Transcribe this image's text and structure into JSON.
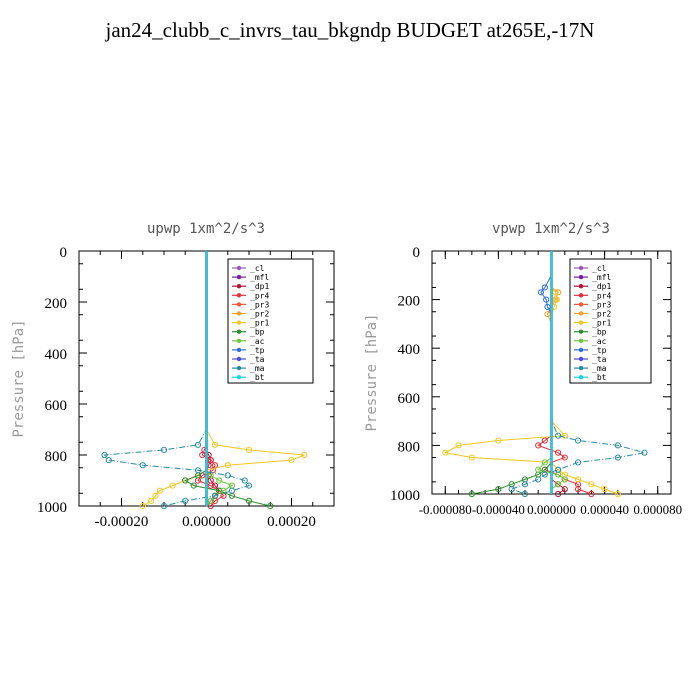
{
  "title": "jan24_clubb_c_invrs_tau_bkgndp  BUDGET at265E,-17N",
  "legend_labels": [
    "_cl",
    "_mfl",
    "_dp1",
    "_pr4",
    "_pr3",
    "_pr2",
    "_pr1",
    "_bp",
    "_ac",
    "_tp",
    "_ta",
    "_ma",
    "_bt"
  ],
  "colors": {
    "_cl": "#9b59b6",
    "_mfl": "#7a1fa2",
    "_dp1": "#b0163a",
    "_pr4": "#e0303a",
    "_pr3": "#f05a3c",
    "_pr2": "#f0a030",
    "_pr1": "#f0c820",
    "_bp": "#2e8b2e",
    "_ac": "#6cc644",
    "_tp": "#2e6fd8",
    "_ta": "#4b4bd8",
    "_ma": "#2a8aa0",
    "_bt": "#20d0e0"
  },
  "chart_data": [
    {
      "type": "line",
      "title": "upwp   1xm^2/s^3",
      "ylabel": "Pressure [hPa]",
      "xlabel": "",
      "ylim": [
        1000,
        0
      ],
      "xlim": [
        -0.0003,
        0.0003
      ],
      "xticks": [
        -0.0002,
        0,
        0.0002
      ],
      "xtick_labels": [
        "-0.00020",
        "0.00000",
        "0.00020"
      ],
      "yticks": [
        0,
        200,
        400,
        600,
        800,
        1000
      ],
      "ytick_labels": [
        "0",
        "200",
        "400",
        "600",
        "800",
        "1000"
      ],
      "y": [
        0,
        100,
        200,
        300,
        400,
        500,
        600,
        700,
        760,
        780,
        800,
        820,
        840,
        860,
        880,
        900,
        920,
        940,
        960,
        980,
        1000
      ],
      "series": [
        {
          "name": "_cl",
          "values": [
            0,
            0,
            0,
            0,
            0,
            0,
            0,
            0,
            0,
            0,
            0,
            0,
            0,
            0,
            0,
            0,
            0,
            0,
            0,
            0,
            0
          ]
        },
        {
          "name": "_mfl",
          "values": [
            0,
            0,
            0,
            0,
            0,
            0,
            0,
            0,
            0,
            0,
            0,
            0,
            0,
            0,
            0,
            0,
            0,
            0,
            0,
            0,
            0
          ]
        },
        {
          "name": "_dp1",
          "values": [
            0,
            0,
            0,
            0,
            0,
            0,
            0,
            0,
            0,
            0,
            5e-06,
            1e-05,
            5e-06,
            0,
            5e-06,
            1e-05,
            2e-05,
            3e-05,
            2e-05,
            1e-05,
            0
          ]
        },
        {
          "name": "_pr4",
          "values": [
            0,
            0,
            0,
            0,
            0,
            0,
            0,
            0,
            0,
            -5e-06,
            -1e-05,
            1e-05,
            2e-05,
            1.5e-05,
            -1e-05,
            -2e-05,
            1e-05,
            3e-05,
            4e-05,
            2e-05,
            1e-05
          ]
        },
        {
          "name": "_pr3",
          "values": [
            0,
            0,
            0,
            0,
            0,
            0,
            0,
            0,
            0,
            0,
            0,
            0,
            0,
            0,
            0,
            0,
            0,
            0,
            0,
            0,
            0
          ]
        },
        {
          "name": "_pr2",
          "values": [
            0,
            0,
            0,
            0,
            0,
            0,
            0,
            0,
            0,
            0,
            0,
            0,
            0,
            0,
            0,
            0,
            0,
            0,
            0,
            0,
            0
          ]
        },
        {
          "name": "_pr1",
          "values": [
            0,
            0,
            0,
            0,
            0,
            0,
            0,
            0,
            2e-05,
            0.0001,
            0.00023,
            0.0002,
            5e-05,
            0,
            -2e-05,
            -5e-05,
            -8e-05,
            -0.00011,
            -0.00012,
            -0.00013,
            -0.00015
          ]
        },
        {
          "name": "_bp",
          "values": [
            0,
            0,
            0,
            0,
            0,
            0,
            0,
            0,
            0,
            0,
            0,
            0,
            0,
            0,
            -2e-05,
            -5e-05,
            -3e-05,
            3e-05,
            6e-05,
            0.0001,
            0.00015
          ]
        },
        {
          "name": "_ac",
          "values": [
            0,
            0,
            0,
            0,
            0,
            0,
            0,
            0,
            0,
            0,
            0,
            0,
            0,
            0,
            1e-05,
            3e-05,
            6e-05,
            4e-05,
            2e-05,
            1e-05,
            0
          ]
        },
        {
          "name": "_tp",
          "values": [
            0,
            0,
            0,
            0,
            0,
            0,
            0,
            0,
            0,
            0,
            0,
            0,
            0,
            0,
            0,
            0,
            0,
            0,
            0,
            0,
            0
          ]
        },
        {
          "name": "_ta",
          "values": [
            0,
            0,
            0,
            0,
            0,
            0,
            0,
            0,
            0,
            0,
            0,
            0,
            0,
            0,
            0,
            0,
            0,
            0,
            0,
            0,
            0
          ]
        },
        {
          "name": "_ma",
          "values": [
            0,
            0,
            0,
            0,
            0,
            0,
            0,
            0,
            -2e-05,
            -0.0001,
            -0.00024,
            -0.00023,
            -0.00015,
            -2e-05,
            5e-05,
            9e-05,
            0.0001,
            6e-05,
            2e-05,
            -5e-05,
            -0.0001
          ]
        },
        {
          "name": "_bt",
          "values": [
            0,
            0,
            0,
            0,
            0,
            0,
            0,
            0,
            0,
            0,
            0,
            0,
            0,
            0,
            0,
            0,
            0,
            0,
            0,
            0,
            0
          ]
        }
      ],
      "legend": "top-right",
      "grid": false
    },
    {
      "type": "line",
      "title": "vpwp   1xm^2/s^3",
      "ylabel": "Pressure [hPa]",
      "xlabel": "",
      "ylim": [
        1000,
        0
      ],
      "xlim": [
        -9e-05,
        9e-05
      ],
      "xticks": [
        -8e-05,
        -4e-05,
        0,
        4e-05,
        8e-05
      ],
      "xtick_labels": [
        "-0.000080",
        "-0.000040",
        "0.000000",
        "0.000040",
        "0.000080"
      ],
      "yticks": [
        0,
        200,
        400,
        600,
        800,
        1000
      ],
      "ytick_labels": [
        "0",
        "200",
        "400",
        "600",
        "800",
        "1000"
      ],
      "y": [
        0,
        100,
        150,
        170,
        200,
        230,
        260,
        300,
        400,
        500,
        600,
        700,
        760,
        780,
        800,
        830,
        850,
        870,
        900,
        920,
        940,
        960,
        980,
        1000
      ],
      "series": [
        {
          "name": "_cl",
          "values": [
            0,
            0,
            0,
            0,
            0,
            0,
            0,
            0,
            0,
            0,
            0,
            0,
            0,
            0,
            0,
            0,
            0,
            0,
            0,
            0,
            0,
            0,
            0,
            0
          ]
        },
        {
          "name": "_mfl",
          "values": [
            0,
            0,
            0,
            0,
            0,
            0,
            0,
            0,
            0,
            0,
            0,
            0,
            0,
            0,
            0,
            0,
            0,
            0,
            0,
            0,
            0,
            0,
            0,
            0
          ]
        },
        {
          "name": "_dp1",
          "values": [
            0,
            0,
            0,
            0,
            0,
            0,
            0,
            0,
            0,
            0,
            0,
            0,
            0,
            0,
            0,
            0,
            0,
            0,
            0,
            0,
            0,
            5e-06,
            1e-05,
            5e-06
          ]
        },
        {
          "name": "_pr4",
          "values": [
            0,
            0,
            0,
            0,
            0,
            0,
            0,
            0,
            0,
            0,
            0,
            0,
            0,
            -5e-06,
            -1e-05,
            5e-06,
            1e-05,
            0,
            -5e-06,
            5e-06,
            1e-05,
            2e-05,
            2e-05,
            3e-05
          ]
        },
        {
          "name": "_pr3",
          "values": [
            0,
            0,
            0,
            0,
            0,
            0,
            0,
            0,
            0,
            0,
            0,
            0,
            0,
            0,
            0,
            0,
            0,
            0,
            0,
            0,
            0,
            0,
            0,
            0
          ]
        },
        {
          "name": "_pr2",
          "values": [
            0,
            0,
            0,
            5e-06,
            3e-06,
            0,
            -3e-06,
            0,
            0,
            0,
            0,
            0,
            0,
            0,
            0,
            0,
            0,
            0,
            0,
            0,
            0,
            0,
            0,
            0
          ]
        },
        {
          "name": "_pr1",
          "values": [
            0,
            0,
            0,
            3e-06,
            4e-06,
            2e-06,
            0,
            0,
            0,
            0,
            0,
            0,
            1e-05,
            -4e-05,
            -7e-05,
            -8e-05,
            -6e-05,
            0,
            5e-06,
            1e-05,
            2e-05,
            3e-05,
            4e-05,
            5e-05
          ]
        },
        {
          "name": "_bp",
          "values": [
            0,
            0,
            0,
            0,
            0,
            0,
            0,
            0,
            0,
            0,
            0,
            0,
            0,
            0,
            0,
            0,
            0,
            0,
            -5e-06,
            -1e-05,
            -2e-05,
            -3e-05,
            -4e-05,
            -6e-05
          ]
        },
        {
          "name": "_ac",
          "values": [
            0,
            0,
            0,
            0,
            0,
            0,
            0,
            0,
            0,
            0,
            0,
            0,
            0,
            0,
            0,
            0,
            0,
            -5e-06,
            -1e-05,
            5e-06,
            1e-05,
            5e-06,
            0,
            0
          ]
        },
        {
          "name": "_tp",
          "values": [
            0,
            0,
            -5e-06,
            -8e-06,
            -4e-06,
            -3e-06,
            0,
            0,
            0,
            0,
            0,
            0,
            0,
            0,
            0,
            0,
            0,
            0,
            0,
            0,
            0,
            0,
            0,
            0
          ]
        },
        {
          "name": "_ta",
          "values": [
            0,
            0,
            0,
            0,
            0,
            0,
            0,
            0,
            0,
            0,
            0,
            0,
            0,
            0,
            0,
            0,
            0,
            0,
            0,
            0,
            0,
            0,
            0,
            0
          ]
        },
        {
          "name": "_ma",
          "values": [
            0,
            0,
            0,
            0,
            0,
            0,
            0,
            0,
            0,
            0,
            0,
            0,
            5e-06,
            2e-05,
            5e-05,
            7e-05,
            5e-05,
            2e-05,
            5e-06,
            -5e-06,
            -1e-05,
            -2e-05,
            -3e-05,
            -2e-05
          ]
        },
        {
          "name": "_bt",
          "values": [
            0,
            0,
            0,
            0,
            0,
            0,
            0,
            0,
            0,
            0,
            0,
            0,
            0,
            0,
            0,
            0,
            0,
            0,
            0,
            0,
            0,
            0,
            0,
            0
          ]
        }
      ],
      "legend": "top-right",
      "grid": false
    }
  ]
}
